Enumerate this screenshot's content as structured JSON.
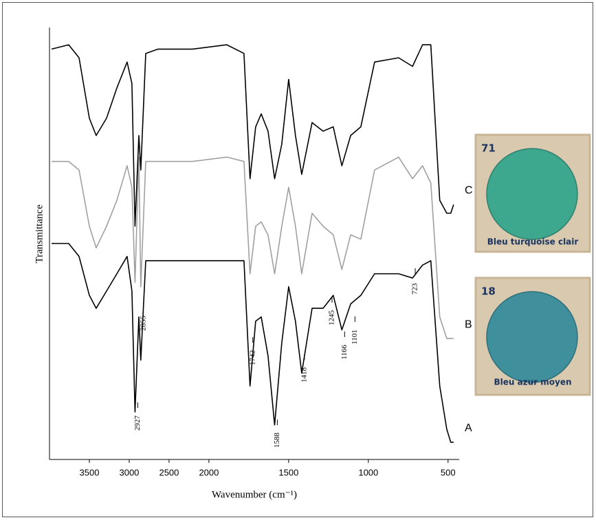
{
  "chart_data": {
    "type": "line",
    "xlabel": "Wavenumber (cm⁻¹)",
    "ylabel": "Transmittance",
    "x": [
      3974,
      3759,
      3629,
      3500,
      3414,
      3284,
      3155,
      3026,
      2966,
      2927,
      2879,
      2855,
      2793,
      2638,
      2207,
      1888,
      1780,
      1742,
      1707,
      1672,
      1629,
      1588,
      1543,
      1500,
      1457,
      1418,
      1353,
      1284,
      1220,
      1166,
      1111,
      1047,
      961,
      810,
      723,
      660,
      608,
      552,
      508,
      483,
      465
    ],
    "xlim": [
      4000,
      430
    ],
    "x_expand_below": 2000,
    "x_expand_factor": 2,
    "xticks": [
      3500,
      3000,
      2500,
      2000,
      1500,
      1000,
      500
    ],
    "ylim": [
      0,
      100
    ],
    "series": [
      {
        "name": "A",
        "color": "#000000",
        "values": [
          50,
          50,
          47,
          38,
          35,
          39,
          43,
          47,
          39,
          11,
          33,
          23,
          46,
          46,
          46,
          46,
          46,
          17,
          32,
          33,
          24,
          8,
          27,
          40,
          32,
          20,
          35,
          35,
          38,
          30,
          36,
          38,
          43,
          43,
          42,
          45,
          46,
          17,
          7,
          4,
          4
        ]
      },
      {
        "name": "B",
        "color": "#a0a0a0",
        "values": [
          69,
          69,
          67,
          54,
          49,
          54,
          60,
          68,
          63,
          41,
          70,
          40,
          69,
          69,
          69,
          70,
          69,
          43,
          54,
          55,
          52,
          43,
          54,
          63,
          54,
          43,
          57,
          54,
          52,
          44,
          52,
          51,
          67,
          70,
          65,
          68,
          64,
          33,
          28,
          28,
          28
        ]
      },
      {
        "name": "C",
        "color": "#000000",
        "values": [
          95,
          96,
          93,
          79,
          75,
          79,
          86,
          92,
          87,
          54,
          75,
          67,
          94,
          95,
          95,
          96,
          94,
          65,
          77,
          80,
          76,
          65,
          73,
          88,
          75,
          66,
          78,
          76,
          77,
          68,
          75,
          77,
          92,
          93,
          91,
          96,
          96,
          60,
          57,
          57,
          59
        ]
      }
    ],
    "annotations": [
      2927,
      2855,
      1742,
      1588,
      1418,
      1245,
      1166,
      1101,
      723
    ]
  },
  "swatches": [
    {
      "number": "71",
      "caption": "Bleu turquoise clair",
      "color": "#3ea88e"
    },
    {
      "number": "18",
      "caption": "Bleu azur moyen",
      "color": "#3f8f9c"
    }
  ]
}
